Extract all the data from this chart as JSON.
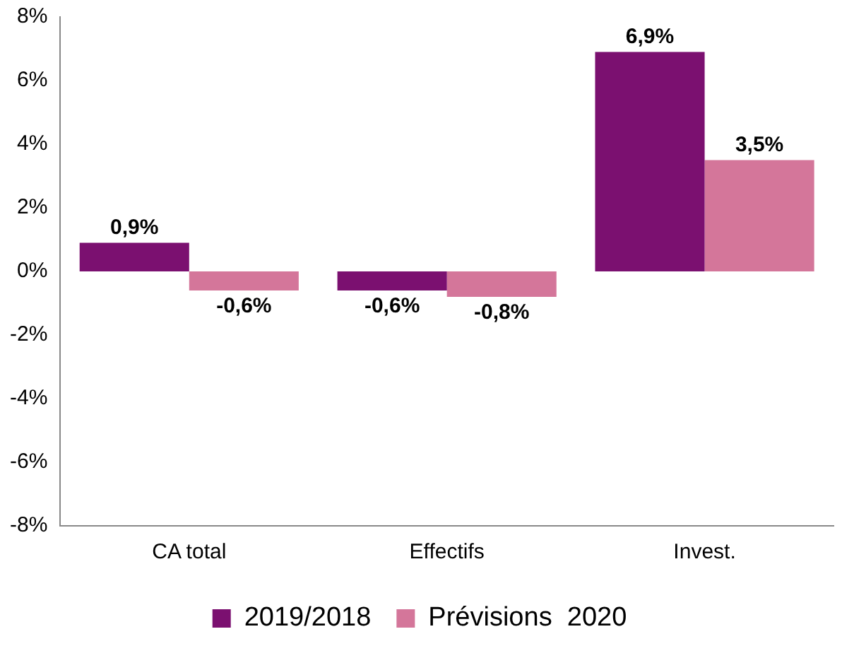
{
  "chart_data": {
    "type": "bar",
    "categories": [
      "CA total",
      "Effectifs",
      "Invest."
    ],
    "series": [
      {
        "name": "2019/2018",
        "color": "#7b1070",
        "values": [
          0.9,
          -0.6,
          6.9
        ],
        "value_labels": [
          "0,9%",
          "-0,6%",
          "6,9%"
        ]
      },
      {
        "name": "Prévisions  2020",
        "color": "#d4769a",
        "values": [
          -0.6,
          -0.8,
          3.5
        ],
        "value_labels": [
          "-0,6%",
          "-0,8%",
          "3,5%"
        ]
      }
    ],
    "ylim": [
      -8,
      8
    ],
    "yticks": [
      {
        "value": -8,
        "label": "-8%"
      },
      {
        "value": -6,
        "label": "-6%"
      },
      {
        "value": -4,
        "label": "-4%"
      },
      {
        "value": -2,
        "label": "-2%"
      },
      {
        "value": 0,
        "label": "0%"
      },
      {
        "value": 2,
        "label": "2%"
      },
      {
        "value": 4,
        "label": "4%"
      },
      {
        "value": 6,
        "label": "6%"
      },
      {
        "value": 8,
        "label": "8%"
      }
    ],
    "grid": false,
    "legend": "bottom"
  }
}
